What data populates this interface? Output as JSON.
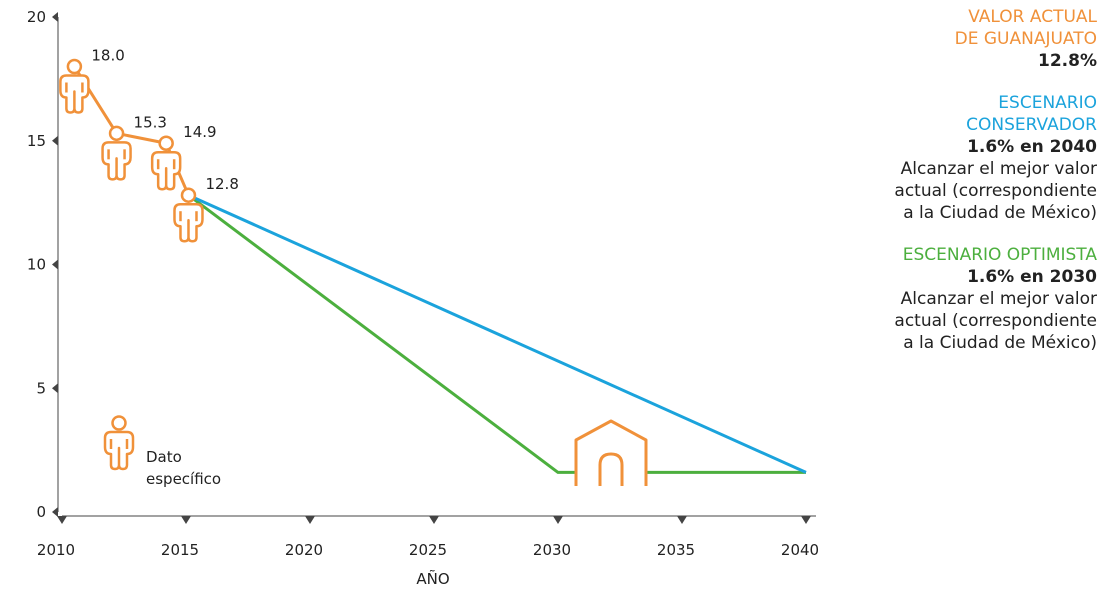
{
  "chart_data": {
    "type": "line",
    "xlabel": "AÑO",
    "ylabel": "",
    "xlim": [
      2010,
      2040
    ],
    "ylim": [
      0,
      20
    ],
    "x_ticks": [
      "2010",
      "2015",
      "2020",
      "2025",
      "2030",
      "2035",
      "2040"
    ],
    "y_ticks": [
      "0",
      "5",
      "10",
      "15",
      "20"
    ],
    "grid": false,
    "series": [
      {
        "name": "",
        "color": "#f0913a",
        "points": [
          {
            "x": 2010.5,
            "y": 18.0,
            "label": "18.0"
          },
          {
            "x": 2012.2,
            "y": 15.3,
            "label": "15.3"
          },
          {
            "x": 2014.2,
            "y": 14.9,
            "label": "14.9"
          },
          {
            "x": 2015.1,
            "y": 12.8,
            "label": "12.8"
          }
        ]
      },
      {
        "name": "ESCENARIO CONSERVADOR",
        "color": "#1ba3dc",
        "points": [
          {
            "x": 2015.1,
            "y": 12.8
          },
          {
            "x": 2040,
            "y": 1.6
          }
        ]
      },
      {
        "name": "ESCENARIO OPTIMISTA",
        "color": "#4caf3e",
        "points": [
          {
            "x": 2015.1,
            "y": 12.8
          },
          {
            "x": 2030,
            "y": 1.6
          },
          {
            "x": 2040,
            "y": 1.6
          }
        ]
      }
    ],
    "legend": {
      "label_line1": "Dato",
      "label_line2": "específico",
      "icon": "person-icon"
    },
    "house_icon": "house-icon"
  },
  "panel": {
    "actual": {
      "title_line1": "VALOR ACTUAL",
      "title_line2": "DE GUANAJUATO",
      "value": "12.8%",
      "color": "#f0913a"
    },
    "conservador": {
      "title_line1": "ESCENARIO",
      "title_line2": "CONSERVADOR",
      "value": "1.6% en 2040",
      "desc_line1": "Alcanzar el mejor valor",
      "desc_line2": "actual (correspondiente",
      "desc_line3": "a la Ciudad de México)",
      "color": "#1ba3dc"
    },
    "optimista": {
      "title_line1": "ESCENARIO OPTIMISTA",
      "value": "1.6% en 2030",
      "desc_line1": "Alcanzar el mejor valor",
      "desc_line2": "actual (correspondiente",
      "desc_line3": "a la Ciudad de México)",
      "color": "#4caf3e"
    }
  }
}
